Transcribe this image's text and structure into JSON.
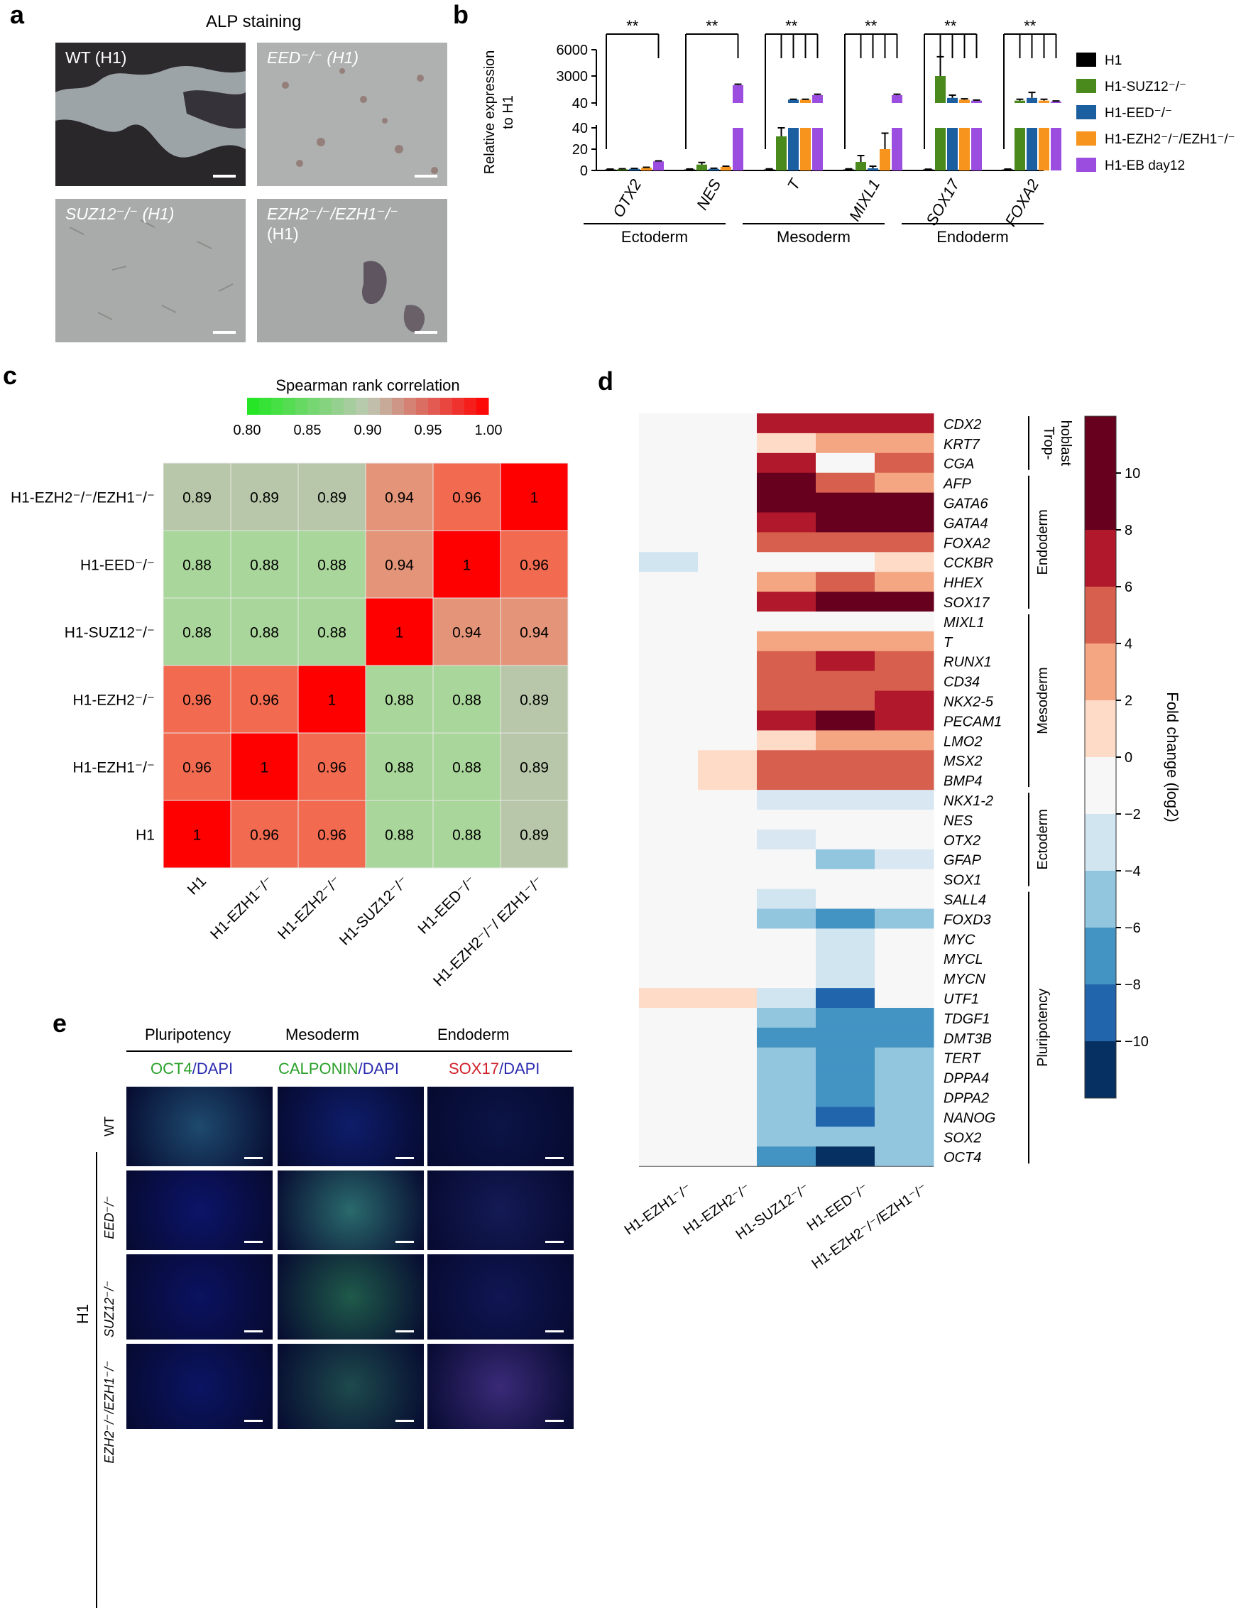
{
  "panels": {
    "a": "a",
    "b": "b",
    "c": "c",
    "d": "d",
    "e": "e"
  },
  "panel_a": {
    "title": "ALP staining",
    "images": [
      {
        "label": "WT (H1)"
      },
      {
        "label": "EED⁻/⁻ (H1)"
      },
      {
        "label": "SUZ12⁻/⁻ (H1)"
      },
      {
        "label": "EZH2⁻/⁻/EZH1⁻/⁻",
        "label2": "(H1)"
      }
    ]
  },
  "panel_e": {
    "col_heads": [
      "Pluripotency",
      "Mesoderm",
      "Endoderm"
    ],
    "stains": [
      {
        "marker": "OCT4",
        "sep": "/",
        "dapi": "DAPI",
        "marker_color": "#2aa02a"
      },
      {
        "marker": "CALPONIN",
        "sep": "/",
        "dapi": "DAPI",
        "marker_color": "#2aa02a"
      },
      {
        "marker": "SOX17",
        "sep": "/",
        "dapi": "DAPI",
        "marker_color": "#d0202a"
      }
    ],
    "row_labels": [
      "WT",
      "EED⁻/⁻",
      "SUZ12⁻/⁻",
      "EZH2⁻/⁻/EZH1⁻/⁻"
    ],
    "group_label": "H1"
  },
  "chart_data": [
    {
      "type": "bar",
      "panel": "b",
      "ylabel": "Relative expression to H1",
      "ylabel_lines": [
        "Relative expression",
        "to H1"
      ],
      "y_ticks_lower": [
        0,
        20,
        40
      ],
      "y_ticks_upper": [
        "40",
        "3000",
        "6000"
      ],
      "broken_axis": {
        "lower": [
          0,
          40
        ],
        "upper": [
          40,
          6000
        ]
      },
      "categories": [
        "OTX2",
        "NES",
        "T",
        "MIXL1",
        "SOX17",
        "FOXA2"
      ],
      "germ_layers": [
        {
          "label": "Ectoderm",
          "genes": [
            "OTX2",
            "NES"
          ]
        },
        {
          "label": "Mesoderm",
          "genes": [
            "T",
            "MIXL1"
          ]
        },
        {
          "label": "Endoderm",
          "genes": [
            "SOX17",
            "FOXA2"
          ]
        }
      ],
      "significance": "**",
      "series": [
        {
          "name": "H1",
          "color": "#000000",
          "values": [
            1,
            1,
            1,
            1,
            1,
            1
          ]
        },
        {
          "name": "H1-SUZ12⁻/⁻",
          "color": "#4a8a1c",
          "values": [
            1.2,
            5.5,
            32,
            8,
            3000,
            300
          ]
        },
        {
          "name": "H1-EED⁻/⁻",
          "color": "#1c5fa0",
          "values": [
            1.5,
            1.5,
            400,
            2,
            600,
            600
          ]
        },
        {
          "name": "H1-EZH2⁻/⁻/EZH1⁻/⁻",
          "color": "#f7941d",
          "values": [
            2.5,
            3.5,
            400,
            20,
            400,
            300
          ]
        },
        {
          "name": "H1-EB day12",
          "color": "#9b4de0",
          "values": [
            8.5,
            2000,
            900,
            900,
            300,
            200
          ]
        }
      ],
      "errors": [
        [
          0.3,
          0.4,
          0.5,
          0.5,
          0.2,
          0.3
        ],
        [
          0.4,
          2,
          8,
          6,
          2200,
          150
        ],
        [
          0.4,
          0.6,
          50,
          2,
          300,
          600
        ],
        [
          0.5,
          0.5,
          50,
          15,
          100,
          150
        ],
        [
          0.5,
          100,
          100,
          100,
          60,
          60
        ]
      ]
    },
    {
      "type": "heatmap",
      "panel": "c",
      "title": "Spearman rank correlation",
      "colorbar_ticks": [
        "0.80",
        "0.85",
        "0.90",
        "0.95",
        "1.00"
      ],
      "colorbar_range": [
        0.8,
        1.0
      ],
      "rows": [
        "H1-EZH2⁻/⁻/EZH1⁻/⁻",
        "H1-EED⁻/⁻",
        "H1-SUZ12⁻/⁻",
        "H1-EZH2⁻/⁻",
        "H1-EZH1⁻/⁻",
        "H1"
      ],
      "columns": [
        "H1",
        "H1-EZH1⁻/⁻",
        "H1-EZH2⁻/⁻",
        "H1-SUZ12⁻/⁻",
        "H1-EED⁻/⁻",
        "H1-EZH2⁻/⁻/ EZH1⁻/⁻"
      ],
      "values": [
        [
          0.89,
          0.89,
          0.89,
          0.94,
          0.96,
          1
        ],
        [
          0.88,
          0.88,
          0.88,
          0.94,
          1,
          0.96
        ],
        [
          0.88,
          0.88,
          0.88,
          1,
          0.94,
          0.94
        ],
        [
          0.96,
          0.96,
          1,
          0.88,
          0.88,
          0.89
        ],
        [
          0.96,
          1,
          0.96,
          0.88,
          0.88,
          0.89
        ],
        [
          1,
          0.96,
          0.96,
          0.88,
          0.88,
          0.89
        ]
      ]
    },
    {
      "type": "heatmap",
      "panel": "d",
      "colorbar_label": "Fold change (log2)",
      "colorbar_ticks": [
        10,
        8,
        6,
        4,
        2,
        0,
        -2,
        -4,
        -6,
        -8,
        -10
      ],
      "colorbar_range": [
        -12,
        12
      ],
      "columns": [
        "H1-EZH1⁻/⁻",
        "H1-EZH2⁻/⁻",
        "H1-SUZ12⁻/⁻",
        "H1-EED⁻/⁻",
        "H1-EZH2⁻/⁻/EZH1⁻/⁻"
      ],
      "rows": [
        "CDX2",
        "KRT7",
        "CGA",
        "AFP",
        "GATA6",
        "GATA4",
        "FOXA2",
        "CCKBR",
        "HHEX",
        "SOX17",
        "MIXL1",
        "T",
        "RUNX1",
        "CD34",
        "NKX2-5",
        "PECAM1",
        "LMO2",
        "MSX2",
        "BMP4",
        "NKX1-2",
        "NES",
        "OTX2",
        "GFAP",
        "SOX1",
        "SALL4",
        "FOXD3",
        "MYC",
        "MYCL",
        "MYCN",
        "UTF1",
        "TDGF1",
        "DMT3B",
        "TERT",
        "DPPA4",
        "DPPA2",
        "NANOG",
        "SOX2",
        "OCT4"
      ],
      "groups": [
        {
          "label": "Trop-hoblast",
          "label_lines": [
            "Trop-",
            "hoblast"
          ],
          "rows": [
            "CDX2",
            "KRT7",
            "CGA"
          ]
        },
        {
          "label": "Endoderm",
          "rows": [
            "AFP",
            "GATA6",
            "GATA4",
            "FOXA2",
            "CCKBR",
            "HHEX",
            "SOX17"
          ]
        },
        {
          "label": "Mesoderm",
          "rows": [
            "MIXL1",
            "T",
            "RUNX1",
            "CD34",
            "NKX2-5",
            "PECAM1",
            "LMO2",
            "MSX2",
            "BMP4"
          ]
        },
        {
          "label": "Ectoderm",
          "rows": [
            "NKX1-2",
            "NES",
            "OTX2",
            "GFAP",
            "SOX1"
          ]
        },
        {
          "label": "Pluripotency",
          "rows": [
            "SALL4",
            "FOXD3",
            "MYC",
            "MYCL",
            "MYCN",
            "UTF1",
            "TDGF1",
            "DMT3B",
            "TERT",
            "DPPA4",
            "DPPA2",
            "NANOG",
            "SOX2",
            "OCT4"
          ]
        }
      ],
      "values": [
        [
          0,
          0,
          9,
          9,
          9
        ],
        [
          0,
          0,
          3,
          5,
          5
        ],
        [
          0,
          0,
          9,
          0,
          7
        ],
        [
          0,
          0,
          11,
          7,
          5
        ],
        [
          0,
          0,
          11,
          11,
          11
        ],
        [
          0,
          0,
          9,
          11,
          11
        ],
        [
          0,
          0,
          7,
          7,
          7
        ],
        [
          -3,
          0,
          0,
          0,
          3
        ],
        [
          0,
          0,
          5,
          7,
          5
        ],
        [
          0,
          0,
          9,
          11,
          11
        ],
        [
          0,
          0,
          0,
          0,
          0
        ],
        [
          0,
          0,
          5,
          5,
          5
        ],
        [
          0,
          0,
          7,
          9,
          7
        ],
        [
          0,
          0,
          7,
          7,
          7
        ],
        [
          0,
          0,
          7,
          7,
          9
        ],
        [
          0,
          0,
          9,
          11,
          9
        ],
        [
          0,
          0,
          3,
          5,
          5
        ],
        [
          0,
          3,
          7,
          7,
          7
        ],
        [
          0,
          3,
          7,
          7,
          7
        ],
        [
          0,
          0,
          -1,
          -1,
          -1
        ],
        [
          0,
          0,
          0,
          0,
          0
        ],
        [
          0,
          0,
          -1,
          0,
          0
        ],
        [
          0,
          0,
          0,
          -5,
          -1
        ],
        [
          0,
          0,
          0,
          0,
          0
        ],
        [
          0,
          0,
          -3,
          0,
          0
        ],
        [
          0,
          0,
          -5,
          -7,
          -5
        ],
        [
          0,
          0,
          0,
          -3,
          0
        ],
        [
          0,
          0,
          0,
          -3,
          0
        ],
        [
          0,
          0,
          0,
          -3,
          0
        ],
        [
          3,
          3,
          -3,
          -9,
          0
        ],
        [
          0,
          0,
          -5,
          -7,
          -7
        ],
        [
          0,
          0,
          -7,
          -7,
          -7
        ],
        [
          0,
          0,
          -5,
          -7,
          -5
        ],
        [
          0,
          0,
          -5,
          -7,
          -5
        ],
        [
          0,
          0,
          -5,
          -7,
          -5
        ],
        [
          0,
          0,
          -5,
          -9,
          -5
        ],
        [
          0,
          0,
          -5,
          -5,
          -5
        ],
        [
          0,
          0,
          -7,
          -11,
          -5
        ]
      ]
    }
  ]
}
